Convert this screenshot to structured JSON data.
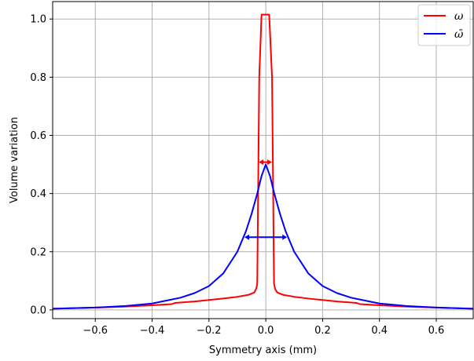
{
  "chart_data": {
    "type": "line",
    "xlabel": "Symmetry axis (mm)",
    "ylabel": "Volume variation",
    "xlim": [
      -0.75,
      0.73
    ],
    "ylim": [
      -0.03,
      1.06
    ],
    "grid": true,
    "legend_position": "top-right",
    "x_ticks": [
      -0.6,
      -0.4,
      -0.2,
      0.0,
      0.2,
      0.4,
      0.6
    ],
    "x_tick_labels": [
      "−0.6",
      "−0.4",
      "−0.2",
      "0.0",
      "0.2",
      "0.4",
      "0.6"
    ],
    "y_ticks": [
      0.0,
      0.2,
      0.4,
      0.6,
      0.8,
      1.0
    ],
    "y_tick_labels": [
      "0.0",
      "0.2",
      "0.4",
      "0.6",
      "0.8",
      "1.0"
    ],
    "series": [
      {
        "name": "ω",
        "color": "#ff0000",
        "points": [
          [
            -0.75,
            0.004
          ],
          [
            -0.6,
            0.008
          ],
          [
            -0.5,
            0.011
          ],
          [
            -0.4,
            0.016
          ],
          [
            -0.33,
            0.02
          ],
          [
            -0.32,
            0.024
          ],
          [
            -0.25,
            0.029
          ],
          [
            -0.2,
            0.034
          ],
          [
            -0.15,
            0.039
          ],
          [
            -0.1,
            0.045
          ],
          [
            -0.06,
            0.052
          ],
          [
            -0.04,
            0.06
          ],
          [
            -0.033,
            0.075
          ],
          [
            -0.03,
            0.09
          ],
          [
            -0.027,
            0.4
          ],
          [
            -0.023,
            0.8
          ],
          [
            -0.015,
            1.015
          ],
          [
            0.0,
            1.015
          ],
          [
            0.012,
            1.015
          ],
          [
            0.022,
            0.8
          ],
          [
            0.026,
            0.4
          ],
          [
            0.029,
            0.09
          ],
          [
            0.033,
            0.072
          ],
          [
            0.04,
            0.06
          ],
          [
            0.06,
            0.052
          ],
          [
            0.1,
            0.045
          ],
          [
            0.15,
            0.039
          ],
          [
            0.2,
            0.034
          ],
          [
            0.25,
            0.029
          ],
          [
            0.32,
            0.024
          ],
          [
            0.33,
            0.02
          ],
          [
            0.4,
            0.016
          ],
          [
            0.5,
            0.011
          ],
          [
            0.6,
            0.008
          ],
          [
            0.73,
            0.004
          ]
        ]
      },
      {
        "name": "ω̄",
        "color": "#0000ff",
        "points": [
          [
            -0.75,
            0.004
          ],
          [
            -0.6,
            0.008
          ],
          [
            -0.5,
            0.013
          ],
          [
            -0.4,
            0.022
          ],
          [
            -0.3,
            0.042
          ],
          [
            -0.25,
            0.058
          ],
          [
            -0.2,
            0.082
          ],
          [
            -0.15,
            0.125
          ],
          [
            -0.1,
            0.2
          ],
          [
            -0.07,
            0.27
          ],
          [
            -0.05,
            0.33
          ],
          [
            -0.03,
            0.4
          ],
          [
            -0.015,
            0.46
          ],
          [
            0.0,
            0.5
          ],
          [
            0.015,
            0.46
          ],
          [
            0.03,
            0.4
          ],
          [
            0.05,
            0.33
          ],
          [
            0.07,
            0.27
          ],
          [
            0.1,
            0.2
          ],
          [
            0.15,
            0.125
          ],
          [
            0.2,
            0.082
          ],
          [
            0.25,
            0.058
          ],
          [
            0.3,
            0.042
          ],
          [
            0.4,
            0.022
          ],
          [
            0.5,
            0.013
          ],
          [
            0.6,
            0.008
          ],
          [
            0.73,
            0.004
          ]
        ]
      }
    ],
    "annotations": [
      {
        "type": "double-arrow",
        "color": "#ff0000",
        "x1": -0.025,
        "x2": 0.022,
        "y": 0.508
      },
      {
        "type": "double-arrow",
        "color": "#0000ff",
        "x1": -0.075,
        "x2": 0.075,
        "y": 0.25
      }
    ]
  }
}
